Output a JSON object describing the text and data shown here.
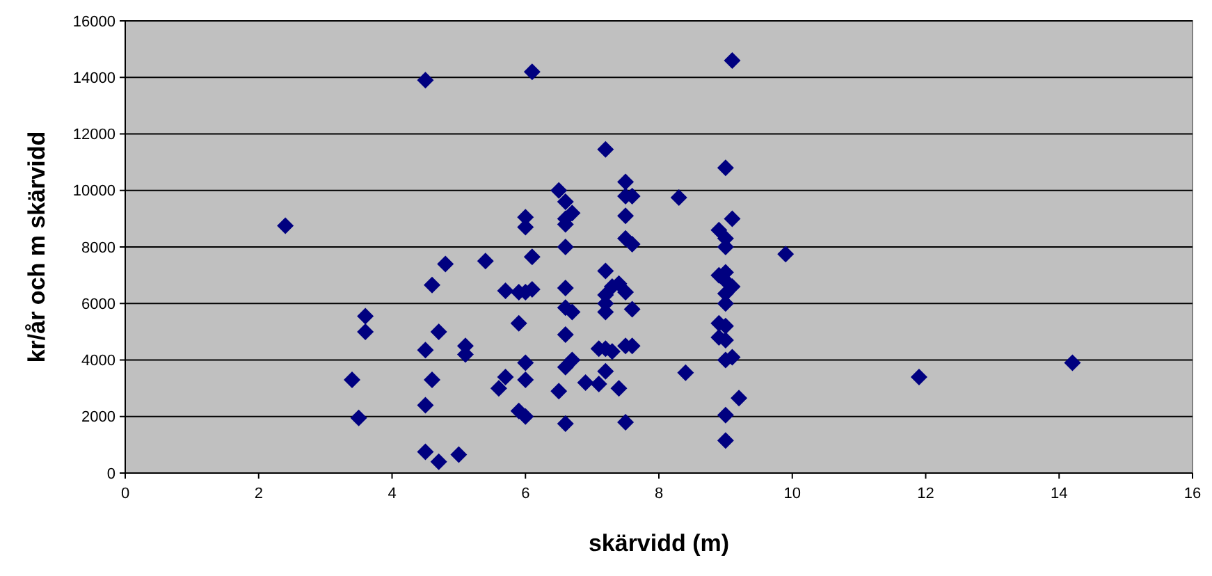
{
  "chart_data": {
    "type": "scatter",
    "xlabel": "skärvidd (m)",
    "ylabel": "kr/år och m skärvidd",
    "xlim": [
      0,
      16
    ],
    "xticks": [
      0,
      2,
      4,
      6,
      8,
      10,
      12,
      14,
      16
    ],
    "ylim": [
      0,
      16000
    ],
    "yticks": [
      0,
      2000,
      4000,
      6000,
      8000,
      10000,
      12000,
      14000,
      16000
    ],
    "grid": "y",
    "marker": "diamond",
    "series": [
      {
        "color": "#000080",
        "x": [
          2.4,
          3.4,
          3.5,
          3.6,
          3.6,
          4.5,
          4.5,
          4.5,
          4.5,
          4.6,
          4.6,
          4.7,
          4.7,
          4.8,
          5.0,
          5.1,
          5.1,
          5.4,
          5.6,
          5.7,
          5.7,
          5.9,
          5.9,
          5.9,
          6.0,
          6.0,
          6.0,
          6.0,
          6.0,
          6.0,
          6.1,
          6.1,
          6.1,
          6.5,
          6.6,
          6.6,
          6.6,
          6.7,
          6.6,
          6.6,
          6.6,
          6.7,
          6.6,
          6.6,
          6.7,
          6.5,
          6.6,
          6.9,
          7.1,
          7.1,
          7.2,
          7.2,
          7.2,
          7.2,
          7.2,
          7.3,
          7.2,
          7.3,
          7.2,
          7.4,
          7.4,
          7.5,
          7.5,
          7.5,
          7.5,
          7.5,
          7.5,
          7.5,
          7.6,
          7.6,
          7.6,
          7.6,
          8.3,
          8.4,
          8.9,
          9.0,
          9.0,
          8.9,
          9.0,
          9.0,
          9.0,
          9.0,
          8.9,
          9.0,
          8.9,
          9.0,
          9.0,
          9.1,
          9.0,
          9.0,
          9.1,
          9.0,
          9.1,
          9.1,
          9.2,
          9.9,
          11.9,
          14.2
        ],
        "values": [
          8750,
          3300,
          1950,
          5550,
          5000,
          13900,
          4350,
          2400,
          750,
          6650,
          3300,
          5000,
          400,
          7400,
          650,
          4500,
          4200,
          7500,
          3000,
          3400,
          6450,
          6400,
          5300,
          2200,
          9050,
          8700,
          6400,
          3900,
          3300,
          2000,
          14200,
          7650,
          6500,
          10000,
          9600,
          9000,
          8800,
          9200,
          8000,
          6550,
          5850,
          5700,
          4900,
          3750,
          4000,
          2900,
          1750,
          3200,
          4400,
          3150,
          11450,
          7150,
          6300,
          6000,
          5700,
          6600,
          4400,
          4300,
          3600,
          3000,
          6700,
          10300,
          9800,
          9100,
          8300,
          6400,
          4500,
          1800,
          9800,
          8100,
          5800,
          4500,
          9750,
          3550,
          8600,
          8300,
          8000,
          7000,
          7100,
          6800,
          6350,
          6000,
          5300,
          5200,
          4800,
          4700,
          4000,
          4100,
          2050,
          1150,
          14600,
          10800,
          9000,
          6600,
          2650,
          7750,
          3400,
          3900
        ]
      }
    ]
  }
}
